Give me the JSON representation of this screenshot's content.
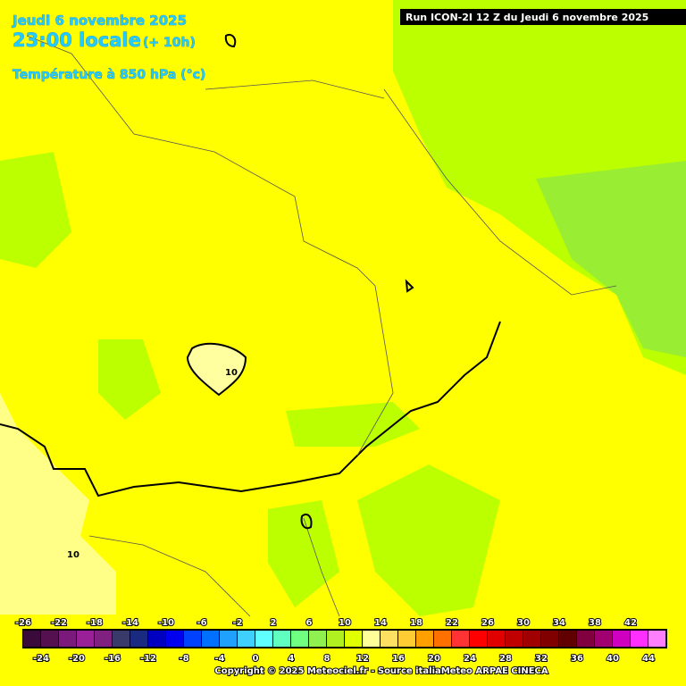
{
  "header": {
    "date": "Jeudi 6 novembre 2025",
    "time": "23:00 locale",
    "lead": "(+ 10h)",
    "field": "Température à 850 hPa (°c)"
  },
  "run": "Run ICON-2I 12 Z du Jeudi 6 novembre 2025",
  "contours": [
    {
      "label": 10
    },
    {
      "label": 10
    }
  ],
  "legend": {
    "values": [
      -26,
      -24,
      -22,
      -20,
      -18,
      -16,
      -14,
      -12,
      -10,
      -8,
      -6,
      -4,
      -2,
      0,
      2,
      4,
      6,
      8,
      10,
      12,
      14,
      16,
      18,
      20,
      22,
      24,
      26,
      28,
      30,
      32,
      34,
      36,
      38,
      40,
      42,
      44
    ],
    "colors": [
      "#3a0a3a",
      "#55104f",
      "#7a1a7a",
      "#9a209a",
      "#802080",
      "#3a3a6a",
      "#1a2a80",
      "#0000c0",
      "#0000ee",
      "#0040ff",
      "#0070ff",
      "#20a0ff",
      "#40d0ff",
      "#60ffff",
      "#60ffc0",
      "#70ff80",
      "#90f050",
      "#b0f020",
      "#e0ff00",
      "#ffff99",
      "#ffe060",
      "#ffcc33",
      "#ffa000",
      "#ff7000",
      "#ff3333",
      "#ff0000",
      "#e00000",
      "#c00000",
      "#a00000",
      "#800000",
      "#600000",
      "#800040",
      "#a00070",
      "#d000c0",
      "#ff30ff",
      "#ff80ff"
    ]
  },
  "copyright": "Copyright © 2025 Meteociel.fr - Source italiaMeteo ARPAE CINECA"
}
